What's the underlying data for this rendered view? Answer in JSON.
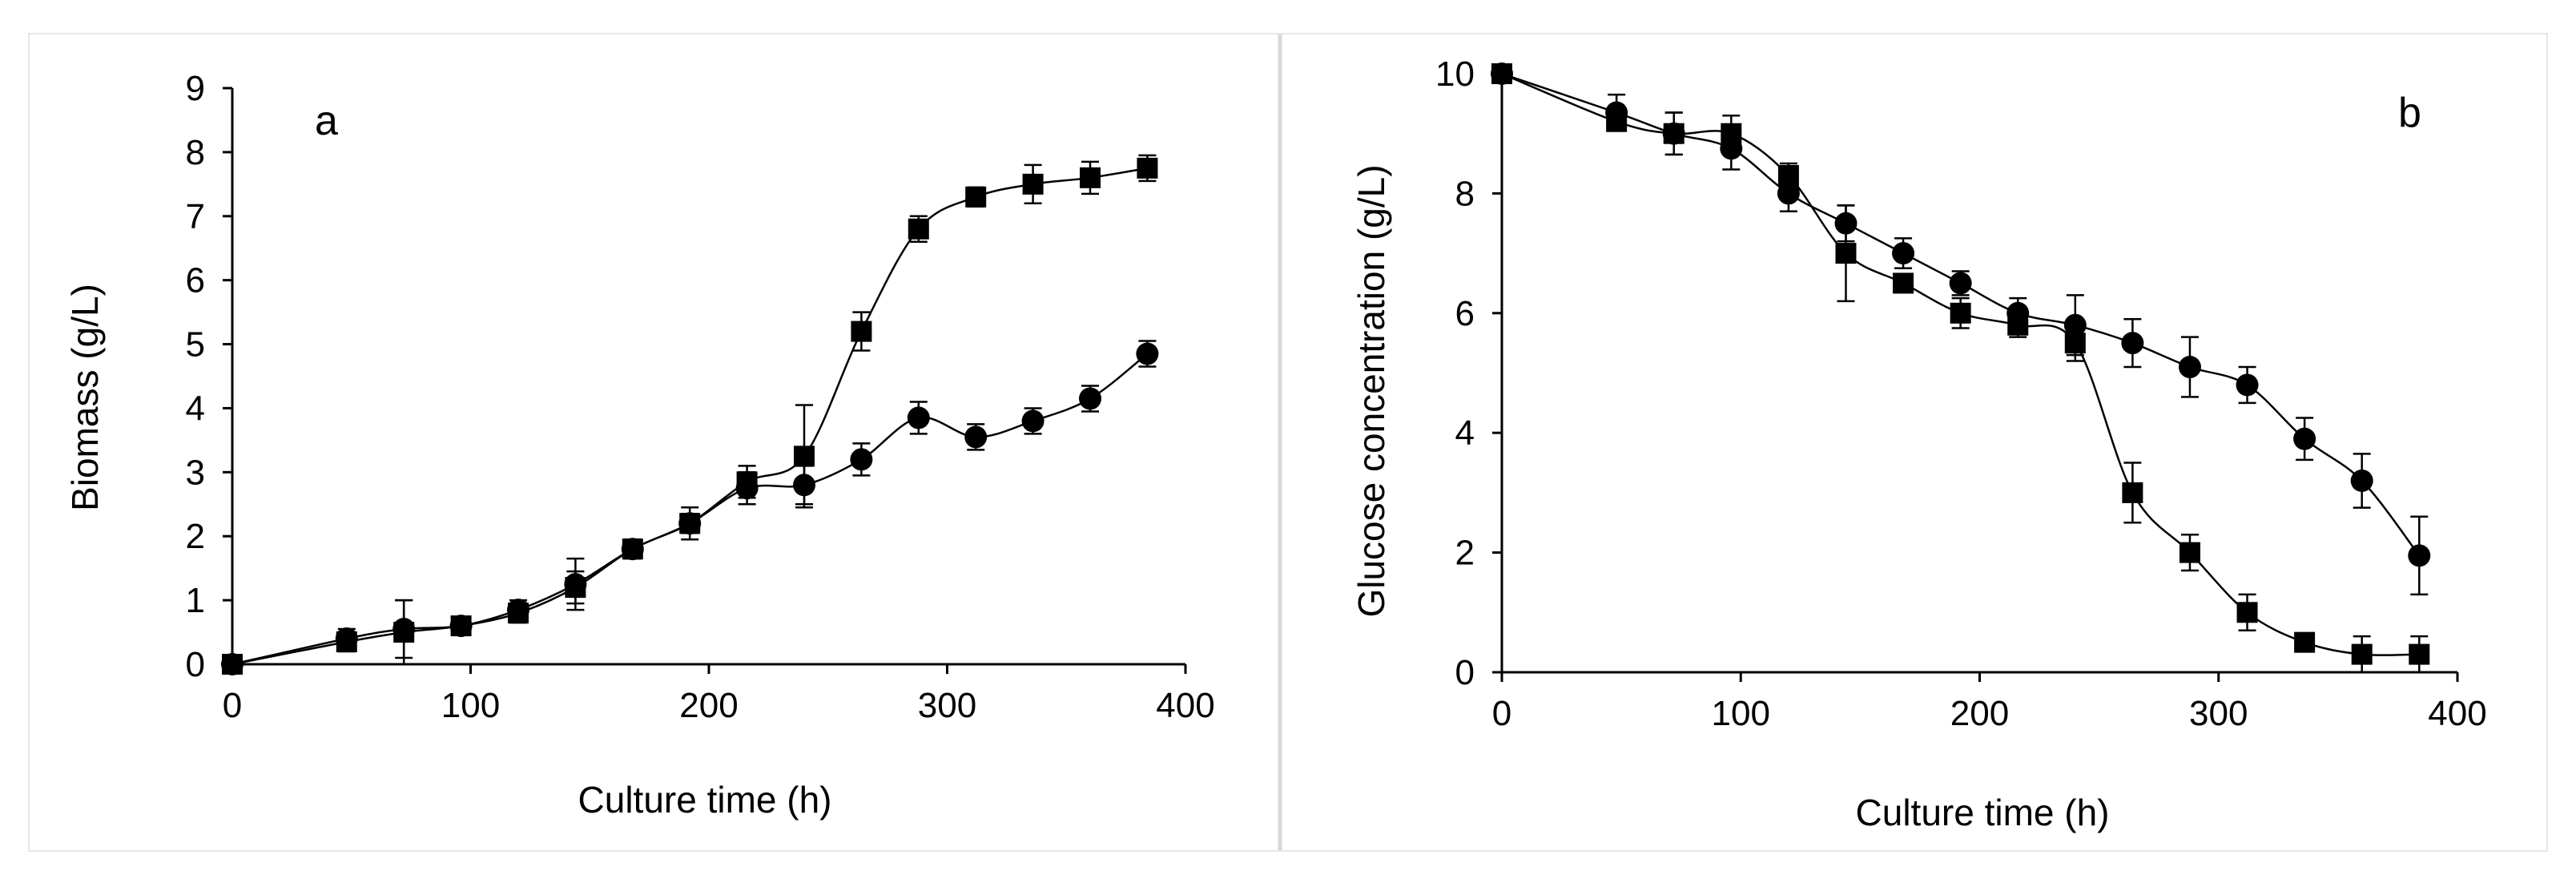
{
  "chart_data": [
    {
      "type": "line",
      "panel_label": "a",
      "xlabel": "Culture time (h)",
      "ylabel": "Biomass (g/L)",
      "xlim": [
        0,
        400
      ],
      "ylim": [
        0,
        9
      ],
      "xticks": [
        0,
        100,
        200,
        300,
        400
      ],
      "yticks": [
        0,
        1,
        2,
        3,
        4,
        5,
        6,
        7,
        8,
        9
      ],
      "grid": false,
      "legend": "none",
      "series": [
        {
          "name": "square markers",
          "marker": "square",
          "x": [
            0,
            48,
            72,
            96,
            120,
            144,
            168,
            192,
            216,
            240,
            264,
            288,
            312,
            336,
            360,
            384
          ],
          "values": [
            0,
            0.35,
            0.5,
            0.6,
            0.8,
            1.2,
            1.8,
            2.2,
            2.85,
            3.25,
            5.2,
            6.8,
            7.3,
            7.5,
            7.6,
            7.75
          ],
          "errors": [
            0,
            0.15,
            0.5,
            0.1,
            0.15,
            0.25,
            0.12,
            0.15,
            0.25,
            0.8,
            0.3,
            0.2,
            0.15,
            0.3,
            0.25,
            0.2
          ]
        },
        {
          "name": "circle markers",
          "marker": "circle",
          "x": [
            0,
            48,
            72,
            96,
            120,
            144,
            168,
            192,
            216,
            240,
            264,
            288,
            312,
            336,
            360,
            384
          ],
          "values": [
            0,
            0.4,
            0.55,
            0.6,
            0.85,
            1.25,
            1.8,
            2.2,
            2.75,
            2.8,
            3.2,
            3.85,
            3.55,
            3.8,
            4.15,
            4.85
          ],
          "errors": [
            0,
            0.15,
            0.45,
            0.1,
            0.15,
            0.4,
            0.15,
            0.25,
            0.25,
            0.3,
            0.25,
            0.25,
            0.2,
            0.2,
            0.2,
            0.2
          ]
        }
      ]
    },
    {
      "type": "line",
      "panel_label": "b",
      "xlabel": "Culture time (h)",
      "ylabel": "Glucose concentration (g/L)",
      "xlim": [
        0,
        400
      ],
      "ylim": [
        0,
        10
      ],
      "xticks": [
        0,
        100,
        200,
        300,
        400
      ],
      "yticks": [
        0,
        2,
        4,
        6,
        8,
        10
      ],
      "grid": false,
      "legend": "none",
      "series": [
        {
          "name": "square markers",
          "marker": "square",
          "x": [
            0,
            48,
            72,
            96,
            120,
            144,
            168,
            192,
            216,
            240,
            264,
            288,
            312,
            336,
            360,
            384
          ],
          "values": [
            10,
            9.2,
            9.0,
            9.0,
            8.3,
            7.0,
            6.5,
            6.0,
            5.8,
            5.5,
            3.0,
            2.0,
            1.0,
            0.5,
            0.3,
            0.3
          ],
          "errors": [
            0,
            0.15,
            0.35,
            0.3,
            0.2,
            0.8,
            0.15,
            0.25,
            0.2,
            0.3,
            0.5,
            0.3,
            0.3,
            0.1,
            0.3,
            0.3
          ]
        },
        {
          "name": "circle markers",
          "marker": "circle",
          "x": [
            0,
            48,
            72,
            96,
            120,
            144,
            168,
            192,
            216,
            240,
            264,
            288,
            312,
            336,
            360,
            384
          ],
          "values": [
            10,
            9.35,
            9.0,
            8.75,
            8.0,
            7.5,
            7.0,
            6.5,
            6.0,
            5.8,
            5.5,
            5.1,
            4.8,
            3.9,
            3.2,
            1.95
          ],
          "errors": [
            0,
            0.3,
            0.35,
            0.35,
            0.3,
            0.3,
            0.25,
            0.2,
            0.25,
            0.5,
            0.4,
            0.5,
            0.3,
            0.35,
            0.45,
            0.65
          ]
        }
      ]
    }
  ]
}
